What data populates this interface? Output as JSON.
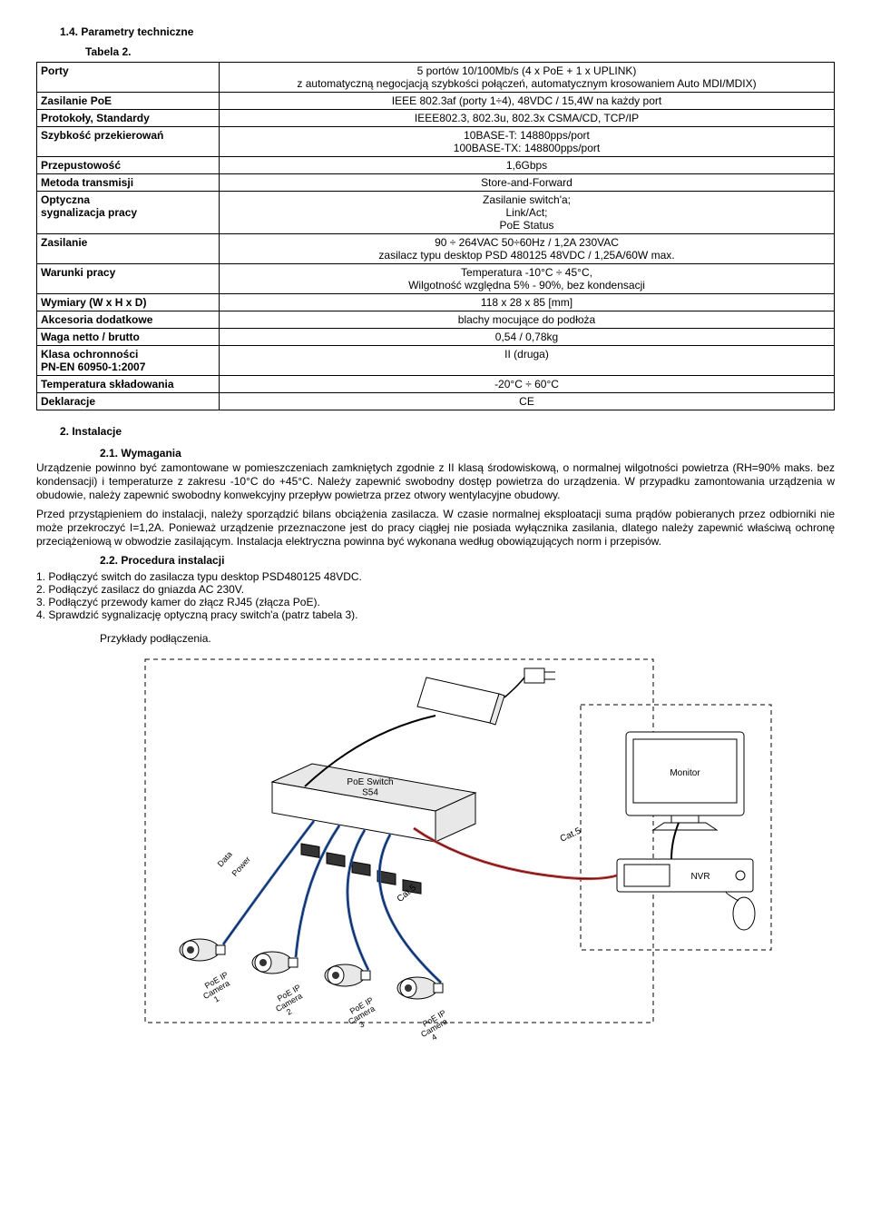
{
  "headings": {
    "h14": "1.4. Parametry techniczne",
    "tab2": "Tabela 2.",
    "h2": "2. Instalacje",
    "h21": "2.1. Wymagania",
    "h22": "2.2. Procedura instalacji",
    "diag_caption": "Przykłady podłączenia."
  },
  "table": {
    "rows": [
      {
        "k": "Porty",
        "v": "5 portów 10/100Mb/s (4 x PoE + 1 x UPLINK)\nz automatyczną negocjacją szybkości połączeń, automatycznym krosowaniem Auto MDI/MDIX)"
      },
      {
        "k": "Zasilanie PoE",
        "v": "IEEE 802.3af (porty 1÷4),  48VDC / 15,4W na każdy port"
      },
      {
        "k": "Protokoły, Standardy",
        "v": "IEEE802.3, 802.3u, 802.3x  CSMA/CD, TCP/IP"
      },
      {
        "k": "Szybkość przekierowań",
        "v": "10BASE-T: 14880pps/port\n100BASE-TX: 148800pps/port"
      },
      {
        "k": "Przepustowość",
        "v": "1,6Gbps"
      },
      {
        "k": "Metoda transmisji",
        "v": "Store-and-Forward"
      },
      {
        "k": "Optyczna\nsygnalizacja pracy",
        "v": "Zasilanie switch'a;\nLink/Act;\nPoE Status"
      },
      {
        "k": "Zasilanie",
        "v": "90 ÷ 264VAC 50÷60Hz / 1,2A  230VAC\nzasilacz typu desktop PSD 480125 48VDC / 1,25A/60W max."
      },
      {
        "k": "Warunki pracy",
        "v": "Temperatura -10°C ÷ 45°C,\nWilgotność względna 5% - 90%, bez kondensacji"
      },
      {
        "k": "Wymiary (W x H x D)",
        "v": "118 x 28 x 85 [mm]"
      },
      {
        "k": "Akcesoria dodatkowe",
        "v": "blachy mocujące do podłoża"
      },
      {
        "k": "Waga netto / brutto",
        "v": "0,54 / 0,78kg"
      },
      {
        "k": "Klasa ochronności\nPN-EN 60950-1:2007",
        "v": "II (druga)"
      },
      {
        "k": "Temperatura składowania",
        "v": "-20°C ÷ 60°C"
      },
      {
        "k": "Deklaracje",
        "v": "CE"
      }
    ]
  },
  "paragraphs": {
    "p21": "Urządzenie powinno być zamontowane w pomieszczeniach zamkniętych zgodnie z II klasą środowiskową, o normalnej wilgotności powietrza (RH=90% maks. bez kondensacji) i temperaturze z zakresu -10°C do +45°C. Należy zapewnić swobodny dostęp powietrza do urządzenia. W przypadku zamontowania urządzenia w obudowie, należy zapewnić swobodny konwekcyjny przepływ powietrza przez otwory wentylacyjne obudowy.",
    "p21b": "Przed przystąpieniem do instalacji, należy sporządzić bilans obciążenia zasilacza. W czasie normalnej eksploatacji suma prądów pobieranych przez odbiorniki nie może przekroczyć I=1,2A. Ponieważ urządzenie przeznaczone jest do pracy ciągłej nie posiada wyłącznika zasilania, dlatego należy zapewnić właściwą ochronę przeciążeniową w obwodzie zasilającym. Instalacja elektryczna powinna być wykonana według obowiązujących norm i przepisów."
  },
  "procedure": {
    "items": [
      "1. Podłączyć switch do zasilacza typu desktop PSD480125 48VDC.",
      "2. Podłączyć zasilacz do gniazda AC 230V.",
      "3. Podłączyć przewody kamer do złącz RJ45 (złącza PoE).",
      "4. Sprawdzić sygnalizację optyczną pracy switch'a (patrz tabela 3)."
    ]
  },
  "diagram": {
    "labels": {
      "switch": "PoE Switch\nS54",
      "monitor": "Monitor",
      "nvr": "NVR",
      "cat5a": "Cat.5",
      "cat5b": "Cat.5",
      "data": "Data",
      "power": "Power",
      "cam1": "PoE IP\nCamera\n1",
      "cam2": "PoE IP\nCamera\n2",
      "cam3": "PoE IP\nCamera\n3",
      "cam4": "PoE IP\nCamera\n4"
    },
    "colors": {
      "line": "#000000",
      "dashed": "#000000",
      "cable_blue": "#2b5aa8",
      "cable_red": "#c23a3a",
      "fill": "#ffffff",
      "shade": "#e8e8e8"
    }
  }
}
